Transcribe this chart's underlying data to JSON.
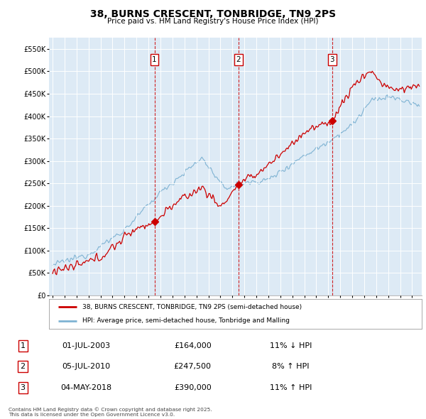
{
  "title": "38, BURNS CRESCENT, TONBRIDGE, TN9 2PS",
  "subtitle": "Price paid vs. HM Land Registry's House Price Index (HPI)",
  "ylim": [
    0,
    575000
  ],
  "yticks": [
    0,
    50000,
    100000,
    150000,
    200000,
    250000,
    300000,
    350000,
    400000,
    450000,
    500000,
    550000
  ],
  "ytick_labels": [
    "£0",
    "£50K",
    "£100K",
    "£150K",
    "£200K",
    "£250K",
    "£300K",
    "£350K",
    "£400K",
    "£450K",
    "£500K",
    "£550K"
  ],
  "bg_color": "#ddeaf5",
  "grid_color": "#ffffff",
  "sale_color": "#cc0000",
  "hpi_color": "#7fb3d3",
  "sale_label": "38, BURNS CRESCENT, TONBRIDGE, TN9 2PS (semi-detached house)",
  "hpi_label": "HPI: Average price, semi-detached house, Tonbridge and Malling",
  "transactions": [
    {
      "num": 1,
      "date_x": 2003.5,
      "price": 164000,
      "date_str": "01-JUL-2003",
      "price_str": "£164,000",
      "pct": "11%",
      "dir": "↓",
      "rel": "HPI"
    },
    {
      "num": 2,
      "date_x": 2010.5,
      "price": 247500,
      "date_str": "05-JUL-2010",
      "price_str": "£247,500",
      "pct": "8%",
      "dir": "↑",
      "rel": "HPI"
    },
    {
      "num": 3,
      "date_x": 2018.33,
      "price": 390000,
      "date_str": "04-MAY-2018",
      "price_str": "£390,000",
      "pct": "11%",
      "dir": "↑",
      "rel": "HPI"
    }
  ],
  "footer": "Contains HM Land Registry data © Crown copyright and database right 2025.\nThis data is licensed under the Open Government Licence v3.0.",
  "xlim_left": 1994.7,
  "xlim_right": 2025.8,
  "year_start": 1995,
  "year_end": 2025
}
